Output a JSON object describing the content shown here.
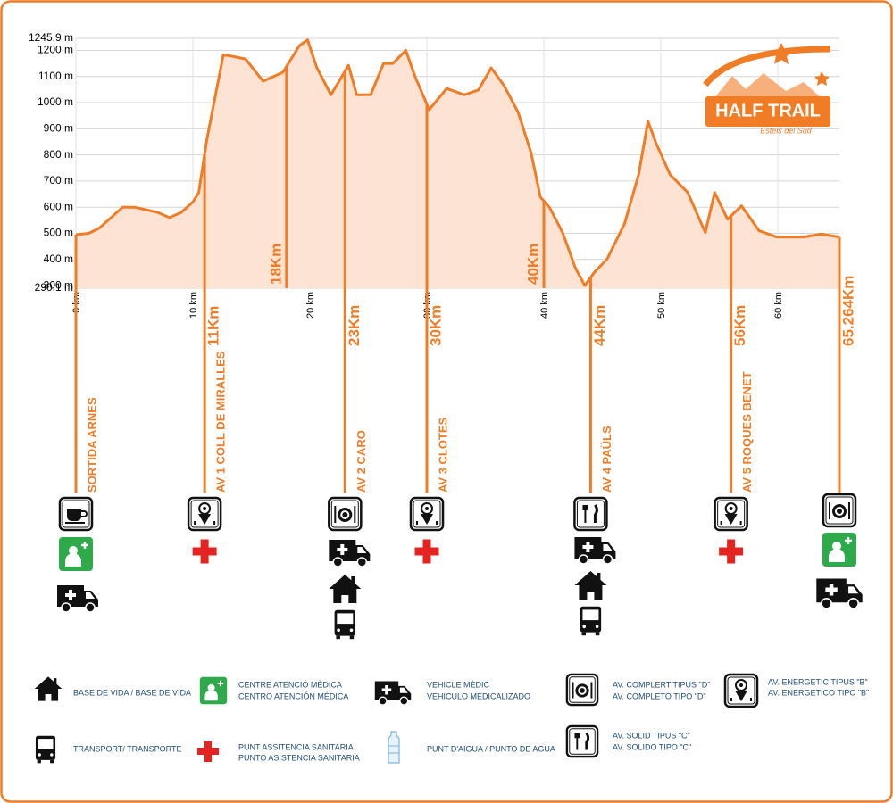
{
  "chart_data": {
    "type": "area",
    "x": [
      0,
      1.1,
      2,
      3,
      4,
      5,
      6,
      7,
      8,
      9,
      10,
      10.5,
      11.2,
      12.6,
      13.4,
      14.5,
      16,
      17.7,
      19.1,
      19.8,
      20.6,
      21.8,
      22.5,
      23.3,
      24,
      25.2,
      26.3,
      27.1,
      28.2,
      29,
      30.2,
      31.7,
      33.2,
      34.4,
      35.5,
      36.6,
      37.8,
      38.9,
      39.7,
      40.5,
      41.6,
      42.7,
      43.5,
      44.3,
      45.4,
      46.9,
      48.1,
      48.9,
      49.6,
      50.8,
      52.3,
      53.8,
      54.6,
      55.7,
      56.9,
      58.4,
      59.9,
      62.2,
      63.7,
      65.264
    ],
    "values": [
      495,
      500,
      520,
      560,
      600,
      600,
      590,
      580,
      560,
      580,
      620,
      656,
      860,
      1183,
      1177,
      1167,
      1082,
      1116,
      1218,
      1240,
      1133,
      1030,
      1082,
      1143,
      1030,
      1030,
      1150,
      1150,
      1200,
      1099,
      973,
      1054,
      1030,
      1048,
      1133,
      1065,
      963,
      810,
      639,
      598,
      503,
      367,
      300,
      350,
      401,
      537,
      724,
      929,
      844,
      724,
      656,
      503,
      656,
      554,
      605,
      510,
      486,
      486,
      497,
      486
    ],
    "color": "#f07c26",
    "fill": "#fde3d3",
    "xlim": [
      0,
      65.264
    ],
    "xticks": [
      {
        "value": 0,
        "label": "0 km"
      },
      {
        "value": 10,
        "label": "10 km"
      },
      {
        "value": 20,
        "label": "20 km"
      },
      {
        "value": 30,
        "label": "30 km"
      },
      {
        "value": 40,
        "label": "40 km"
      },
      {
        "value": 50,
        "label": "50 km"
      },
      {
        "value": 60,
        "label": "60 km"
      }
    ],
    "ylim": [
      290.1,
      1245.9
    ],
    "yticks": [
      {
        "value": 290.1,
        "label": "290.1 m"
      },
      {
        "value": 300,
        "label": "300 m"
      },
      {
        "value": 400,
        "label": "400 m"
      },
      {
        "value": 500,
        "label": "500 m"
      },
      {
        "value": 600,
        "label": "600 m"
      },
      {
        "value": 700,
        "label": "700 m"
      },
      {
        "value": 800,
        "label": "800 m"
      },
      {
        "value": 900,
        "label": "900 m"
      },
      {
        "value": 1000,
        "label": "1000 m"
      },
      {
        "value": 1100,
        "label": "1100 m"
      },
      {
        "value": 1200,
        "label": "1200 m"
      },
      {
        "value": 1245.9,
        "label": "1245.9 m"
      }
    ],
    "grid": true
  },
  "checkpoints": [
    {
      "name": "SORTIDA ARNES"
    },
    {
      "km": 11,
      "label": "11Km",
      "name": "AV 1 COLL DE  MIRALLES"
    },
    {
      "km": 18,
      "label": "18Km"
    },
    {
      "km": 23,
      "label": "23Km",
      "name": "AV 2  CARO"
    },
    {
      "km": 30,
      "label": "30Km",
      "name": "AV 3 CLOTES"
    },
    {
      "km": 40,
      "label": "40Km"
    },
    {
      "km": 44,
      "label": "44Km",
      "name": "AV 4 PAÜLS"
    },
    {
      "km": 56,
      "label": "56Km",
      "name": "AV 5 ROQUES BENET"
    },
    {
      "km": 65.264,
      "label": "65.264Km"
    }
  ],
  "logo": {
    "title": "HALF TRAIL",
    "subtitle": "Estels del Sud"
  },
  "legend": [
    {
      "lines": [
        "BASE DE VIDA / BASE DE VIDA"
      ]
    },
    {
      "lines": [
        "CENTRE ATENCIÓ MÈDICA",
        "CENTRO ATENCIÓN MÉDICA"
      ]
    },
    {
      "lines": [
        "VEHICLE MÈDIC",
        "VEHICULO MEDICALIZADO"
      ]
    },
    {
      "lines": [
        "AV. COMPLERT TIPUS \"D\"",
        "AV. COMPLETO TIPO \"D\""
      ]
    },
    {
      "lines": [
        "AV. ENERGETIC TIPUS  \"B\"",
        "AV. ENERGETICO TIPO \"B\""
      ]
    },
    {
      "lines": [
        "TRANSPORT/ TRANSPORTE"
      ]
    },
    {
      "lines": [
        "PUNT ASSITENCIA SANITARIA",
        "PUNTO ASISTENCIA SANITARIA"
      ]
    },
    {
      "lines": [
        "PUNT D'AIGUA / PUNTO DE AGUA"
      ]
    },
    {
      "lines": [
        "AV. SOLID  TIPUS \"C\"",
        "AV. SOLIDO TIPO \"C\""
      ]
    }
  ]
}
